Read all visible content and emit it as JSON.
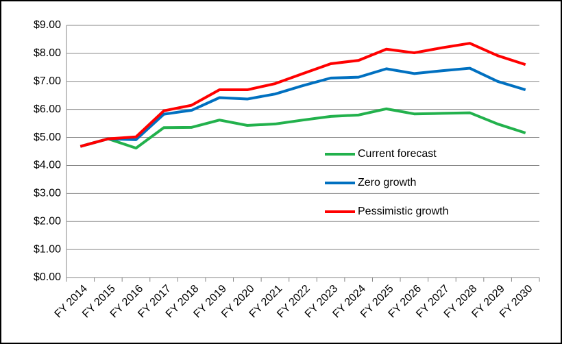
{
  "chart_data": {
    "type": "line",
    "categories": [
      "FY 2014",
      "FY 2015",
      "FY 2016",
      "FY 2017",
      "FY 2018",
      "FY 2019",
      "FY 2020",
      "FY 2021",
      "FY 2022",
      "FY 2023",
      "FY 2024",
      "FY 2025",
      "FY 2026",
      "FY 2027",
      "FY 2028",
      "FY 2029",
      "FY 2030"
    ],
    "series": [
      {
        "name": "Current forecast",
        "color": "#22b14c",
        "values": [
          4.68,
          4.95,
          4.62,
          5.35,
          5.36,
          5.62,
          5.43,
          5.48,
          5.62,
          5.75,
          5.8,
          6.02,
          5.84,
          5.86,
          5.88,
          5.48,
          5.16
        ]
      },
      {
        "name": "Zero growth",
        "color": "#0070c0",
        "values": [
          4.68,
          4.95,
          4.92,
          5.83,
          5.97,
          6.42,
          6.37,
          6.55,
          6.85,
          7.12,
          7.15,
          7.45,
          7.28,
          7.38,
          7.47,
          7.0,
          6.7
        ]
      },
      {
        "name": "Pessimistic growth",
        "color": "#ff0000",
        "values": [
          4.68,
          4.95,
          5.02,
          5.95,
          6.15,
          6.7,
          6.7,
          6.92,
          7.28,
          7.63,
          7.75,
          8.15,
          8.02,
          8.2,
          8.36,
          7.92,
          7.6
        ]
      }
    ],
    "ylim": [
      0,
      9
    ],
    "yticks": [
      {
        "value": 0,
        "label": "$0.00"
      },
      {
        "value": 1,
        "label": "$1.00"
      },
      {
        "value": 2,
        "label": "$2.00"
      },
      {
        "value": 3,
        "label": "$3.00"
      },
      {
        "value": 4,
        "label": "$4.00"
      },
      {
        "value": 5,
        "label": "$5.00"
      },
      {
        "value": 6,
        "label": "$6.00"
      },
      {
        "value": 7,
        "label": "$7.00"
      },
      {
        "value": 8,
        "label": "$8.00"
      },
      {
        "value": 9,
        "label": "$9.00"
      }
    ],
    "grid": true,
    "legend": "center-right"
  }
}
